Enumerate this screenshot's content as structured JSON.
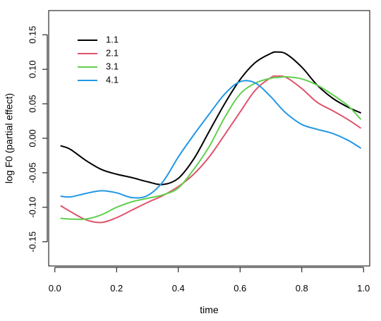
{
  "chart_data": {
    "type": "line",
    "title": "",
    "xlabel": "time",
    "ylabel": "log F0 (partial effect)",
    "xlim": [
      -0.02,
      1.02
    ],
    "ylim": [
      -0.185,
      0.185
    ],
    "grid": false,
    "legend_position": "top-left",
    "x_ticks": [
      "0.0",
      "0.2",
      "0.4",
      "0.6",
      "0.8",
      "1.0"
    ],
    "y_ticks": [
      "-0.15",
      "-0.10",
      "-0.05",
      "0.00",
      "0.05",
      "0.10",
      "0.15"
    ],
    "x": [
      0.02,
      0.05,
      0.1,
      0.15,
      0.2,
      0.25,
      0.3,
      0.35,
      0.4,
      0.45,
      0.5,
      0.55,
      0.6,
      0.65,
      0.7,
      0.72,
      0.75,
      0.8,
      0.85,
      0.9,
      0.95,
      0.99
    ],
    "series": [
      {
        "name": "1.1",
        "color": "#000000",
        "values": [
          -0.011,
          -0.016,
          -0.032,
          -0.045,
          -0.052,
          -0.057,
          -0.063,
          -0.067,
          -0.058,
          -0.03,
          0.01,
          0.05,
          0.085,
          0.11,
          0.123,
          0.125,
          0.122,
          0.103,
          0.077,
          0.058,
          0.045,
          0.037
        ]
      },
      {
        "name": "2.1",
        "color": "#DF536B",
        "values": [
          -0.098,
          -0.106,
          -0.118,
          -0.122,
          -0.115,
          -0.104,
          -0.093,
          -0.083,
          -0.07,
          -0.052,
          -0.027,
          0.005,
          0.038,
          0.07,
          0.088,
          0.09,
          0.088,
          0.072,
          0.052,
          0.04,
          0.027,
          0.015
        ]
      },
      {
        "name": "3.1",
        "color": "#61D04F",
        "values": [
          -0.116,
          -0.117,
          -0.117,
          -0.111,
          -0.1,
          -0.092,
          -0.087,
          -0.082,
          -0.072,
          -0.045,
          -0.012,
          0.03,
          0.064,
          0.08,
          0.087,
          0.088,
          0.089,
          0.086,
          0.077,
          0.063,
          0.047,
          0.028
        ]
      },
      {
        "name": "4.1",
        "color": "#2297E6",
        "values": [
          -0.084,
          -0.085,
          -0.08,
          -0.076,
          -0.079,
          -0.086,
          -0.083,
          -0.063,
          -0.027,
          0.005,
          0.035,
          0.064,
          0.082,
          0.08,
          0.06,
          0.05,
          0.036,
          0.02,
          0.013,
          0.007,
          -0.003,
          -0.014
        ]
      }
    ]
  }
}
